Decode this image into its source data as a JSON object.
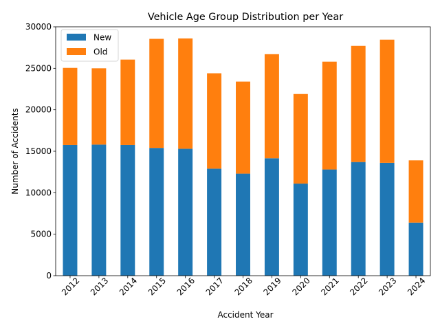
{
  "chart_data": {
    "type": "bar",
    "stacked": true,
    "title": "Vehicle Age Group Distribution per Year",
    "xlabel": "Accident Year",
    "ylabel": "Number of Accidents",
    "categories": [
      "2012",
      "2013",
      "2014",
      "2015",
      "2016",
      "2017",
      "2018",
      "2019",
      "2020",
      "2021",
      "2022",
      "2023",
      "2024"
    ],
    "series": [
      {
        "name": "New",
        "color": "#1f77b4",
        "values": [
          15750,
          15800,
          15750,
          15400,
          15300,
          12900,
          12300,
          14150,
          11100,
          12800,
          13700,
          13600,
          6400
        ]
      },
      {
        "name": "Old",
        "color": "#ff7f0e",
        "values": [
          9300,
          9200,
          10300,
          13150,
          13300,
          11500,
          11100,
          12550,
          10800,
          13000,
          14000,
          14850,
          7500
        ]
      }
    ],
    "ylim": [
      0,
      30000
    ],
    "yticks": [
      0,
      5000,
      10000,
      15000,
      20000,
      25000,
      30000
    ],
    "grid": false,
    "legend_position": "top-left"
  }
}
